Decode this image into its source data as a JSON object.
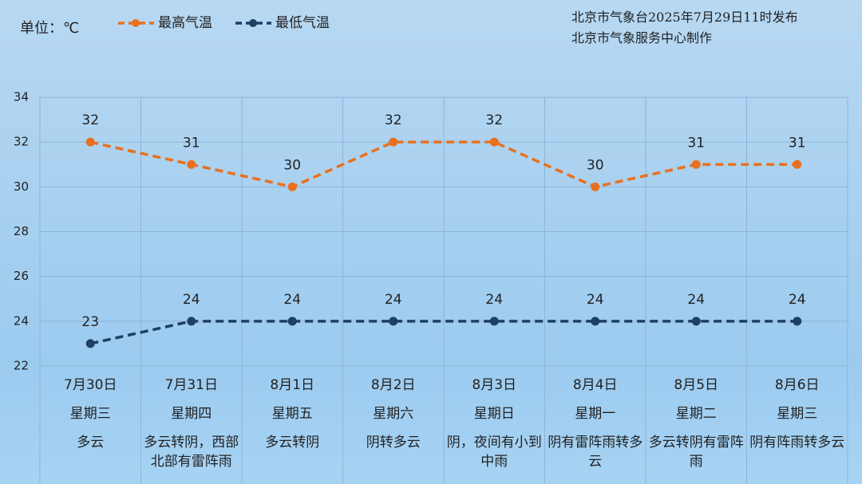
{
  "chart_data": {
    "type": "line",
    "unit_label": "单位：℃",
    "source": [
      "北京市气象台2025年7月29日11时发布",
      "北京市气象服务中心制作"
    ],
    "categories": [
      "7月30日",
      "7月31日",
      "8月1日",
      "8月2日",
      "8月3日",
      "8月4日",
      "8月5日",
      "8月6日"
    ],
    "weekdays": [
      "星期三",
      "星期四",
      "星期五",
      "星期六",
      "星期日",
      "星期一",
      "星期二",
      "星期三"
    ],
    "weather": [
      "多云",
      "多云转阴，西部北部有雷阵雨",
      "多云转阴",
      "阴转多云",
      "阴，夜间有小到中雨",
      "阴有雷阵雨转多云",
      "多云转阴有雷阵雨",
      "阴有阵雨转多云"
    ],
    "series": [
      {
        "name": "最高气温",
        "color": "#e8711f",
        "values": [
          32,
          31,
          30,
          32,
          32,
          30,
          31,
          31
        ]
      },
      {
        "name": "最低气温",
        "color": "#1e3f66",
        "values": [
          23,
          24,
          24,
          24,
          24,
          24,
          24,
          24
        ]
      }
    ],
    "ylim": [
      22,
      34
    ],
    "yticks": [
      22,
      24,
      26,
      28,
      30,
      32,
      34
    ],
    "grid": true
  }
}
